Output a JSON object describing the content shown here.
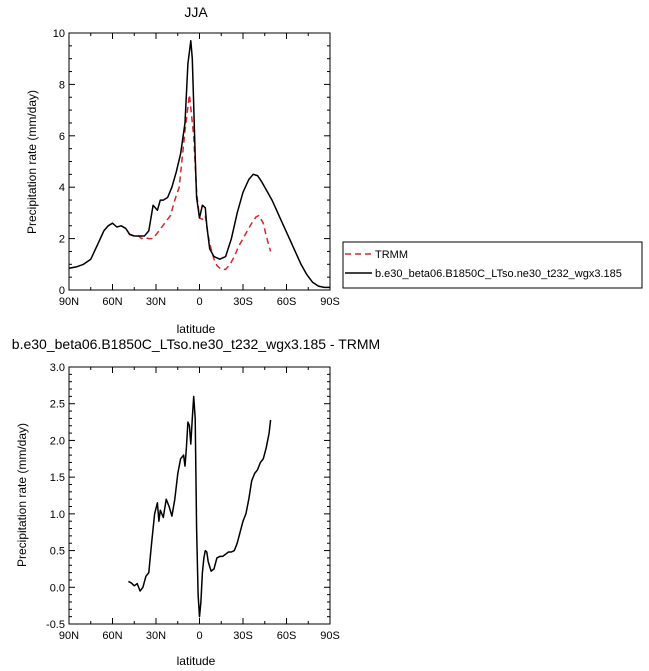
{
  "chart_data": [
    {
      "type": "line",
      "title": "JJA",
      "xlabel": "latitude",
      "ylabel": "Precipitation rate (mm/day)",
      "xlim": [
        90,
        -90
      ],
      "ylim": [
        0,
        10
      ],
      "xticks": [
        90,
        60,
        30,
        0,
        -30,
        -60,
        -90
      ],
      "xticklabels": [
        "90N",
        "60N",
        "30N",
        "0",
        "30S",
        "60S",
        "90S"
      ],
      "yticks": [
        0,
        2,
        4,
        6,
        8,
        10
      ],
      "yticklabels": [
        "0",
        "2",
        "4",
        "6",
        "8",
        "10"
      ],
      "grid": false,
      "legend": "outside-right",
      "series": [
        {
          "name": "TRMM",
          "color": "#d62728",
          "dash": "dashed",
          "x": [
            49,
            45,
            42,
            40,
            38,
            35,
            32,
            28,
            24,
            20,
            17,
            14,
            10,
            7,
            4,
            2,
            0,
            -2,
            -4,
            -6,
            -8,
            -10,
            -12,
            -15,
            -18,
            -21,
            -24,
            -27,
            -30,
            -33,
            -36,
            -39,
            -41,
            -44,
            -46,
            -49
          ],
          "y": [
            2.2,
            2.1,
            2.1,
            2.0,
            2.05,
            2.0,
            2.0,
            2.3,
            2.6,
            2.9,
            3.5,
            4.0,
            6.2,
            7.6,
            6.0,
            3.8,
            2.8,
            2.75,
            2.9,
            2.1,
            1.6,
            1.2,
            0.95,
            0.8,
            0.8,
            1.0,
            1.3,
            1.7,
            2.0,
            2.3,
            2.6,
            2.85,
            2.9,
            2.6,
            2.1,
            1.5
          ]
        },
        {
          "name": "b.e30_beta06.B1850C_LTso.ne30_t232_wgx3.185",
          "color": "#000000",
          "dash": "solid",
          "x": [
            90,
            85,
            80,
            75,
            70,
            66,
            63,
            60,
            57,
            54,
            51,
            48,
            45,
            42,
            38,
            35,
            32,
            29,
            27,
            25,
            22,
            19,
            16,
            13,
            10,
            8,
            6,
            5,
            4,
            3,
            2,
            0,
            -2,
            -4,
            -5,
            -7,
            -10,
            -14,
            -18,
            -22,
            -26,
            -30,
            -34,
            -37,
            -40,
            -43,
            -46,
            -50,
            -54,
            -58,
            -62,
            -66,
            -70,
            -74,
            -78,
            -82,
            -86,
            -90
          ],
          "y": [
            0.85,
            0.9,
            1.0,
            1.2,
            1.8,
            2.3,
            2.5,
            2.6,
            2.45,
            2.5,
            2.4,
            2.15,
            2.1,
            2.1,
            2.1,
            2.3,
            3.3,
            3.1,
            3.5,
            3.5,
            3.6,
            4.0,
            4.6,
            5.3,
            6.5,
            8.8,
            9.7,
            9.0,
            7.2,
            5.2,
            3.6,
            2.8,
            3.3,
            3.2,
            2.5,
            1.6,
            1.3,
            1.2,
            1.3,
            2.0,
            3.0,
            3.8,
            4.3,
            4.5,
            4.45,
            4.2,
            3.9,
            3.5,
            3.0,
            2.5,
            2.0,
            1.5,
            1.0,
            0.6,
            0.3,
            0.15,
            0.1,
            0.1
          ]
        }
      ]
    },
    {
      "type": "line",
      "title": "b.e30_beta06.B1850C_LTso.ne30_t232_wgx3.185 - TRMM",
      "xlabel": "latitude",
      "ylabel": "Precipitation rate (mm/day)",
      "xlim": [
        90,
        -90
      ],
      "ylim": [
        -0.5,
        3.0
      ],
      "xticks": [
        90,
        60,
        30,
        0,
        -30,
        -60,
        -90
      ],
      "xticklabels": [
        "90N",
        "60N",
        "30N",
        "0",
        "30S",
        "60S",
        "90S"
      ],
      "yticks": [
        -0.5,
        0.0,
        0.5,
        1.0,
        1.5,
        2.0,
        2.5,
        3.0
      ],
      "yticklabels": [
        "-0.5",
        "0.0",
        "0.5",
        "1.0",
        "1.5",
        "2.0",
        "2.5",
        "3.0"
      ],
      "grid": false,
      "series": [
        {
          "color": "#000000",
          "dash": "solid",
          "x": [
            49,
            47,
            45,
            43,
            41,
            39,
            37,
            35,
            33,
            31,
            29,
            28,
            27,
            25,
            23,
            21,
            19,
            17,
            15,
            13,
            11,
            10,
            9,
            8,
            7,
            6,
            5,
            4,
            3,
            2,
            1,
            0,
            -1,
            -2,
            -3,
            -4,
            -5,
            -6,
            -8,
            -10,
            -12,
            -14,
            -16,
            -18,
            -20,
            -22,
            -24,
            -26,
            -28,
            -30,
            -32,
            -34,
            -36,
            -38,
            -40,
            -42,
            -44,
            -46,
            -48,
            -49
          ],
          "y": [
            0.08,
            0.06,
            0.02,
            0.05,
            -0.05,
            0.0,
            0.15,
            0.2,
            0.6,
            1.0,
            1.15,
            0.9,
            1.05,
            0.95,
            1.2,
            1.1,
            0.97,
            1.2,
            1.55,
            1.75,
            1.8,
            1.65,
            1.9,
            2.25,
            2.2,
            1.95,
            2.3,
            2.6,
            2.3,
            0.8,
            -0.1,
            -0.4,
            -0.2,
            0.2,
            0.4,
            0.5,
            0.48,
            0.35,
            0.22,
            0.25,
            0.4,
            0.42,
            0.42,
            0.45,
            0.48,
            0.48,
            0.5,
            0.6,
            0.75,
            0.9,
            1.0,
            1.2,
            1.45,
            1.55,
            1.6,
            1.7,
            1.75,
            1.9,
            2.1,
            2.28
          ]
        }
      ]
    }
  ]
}
